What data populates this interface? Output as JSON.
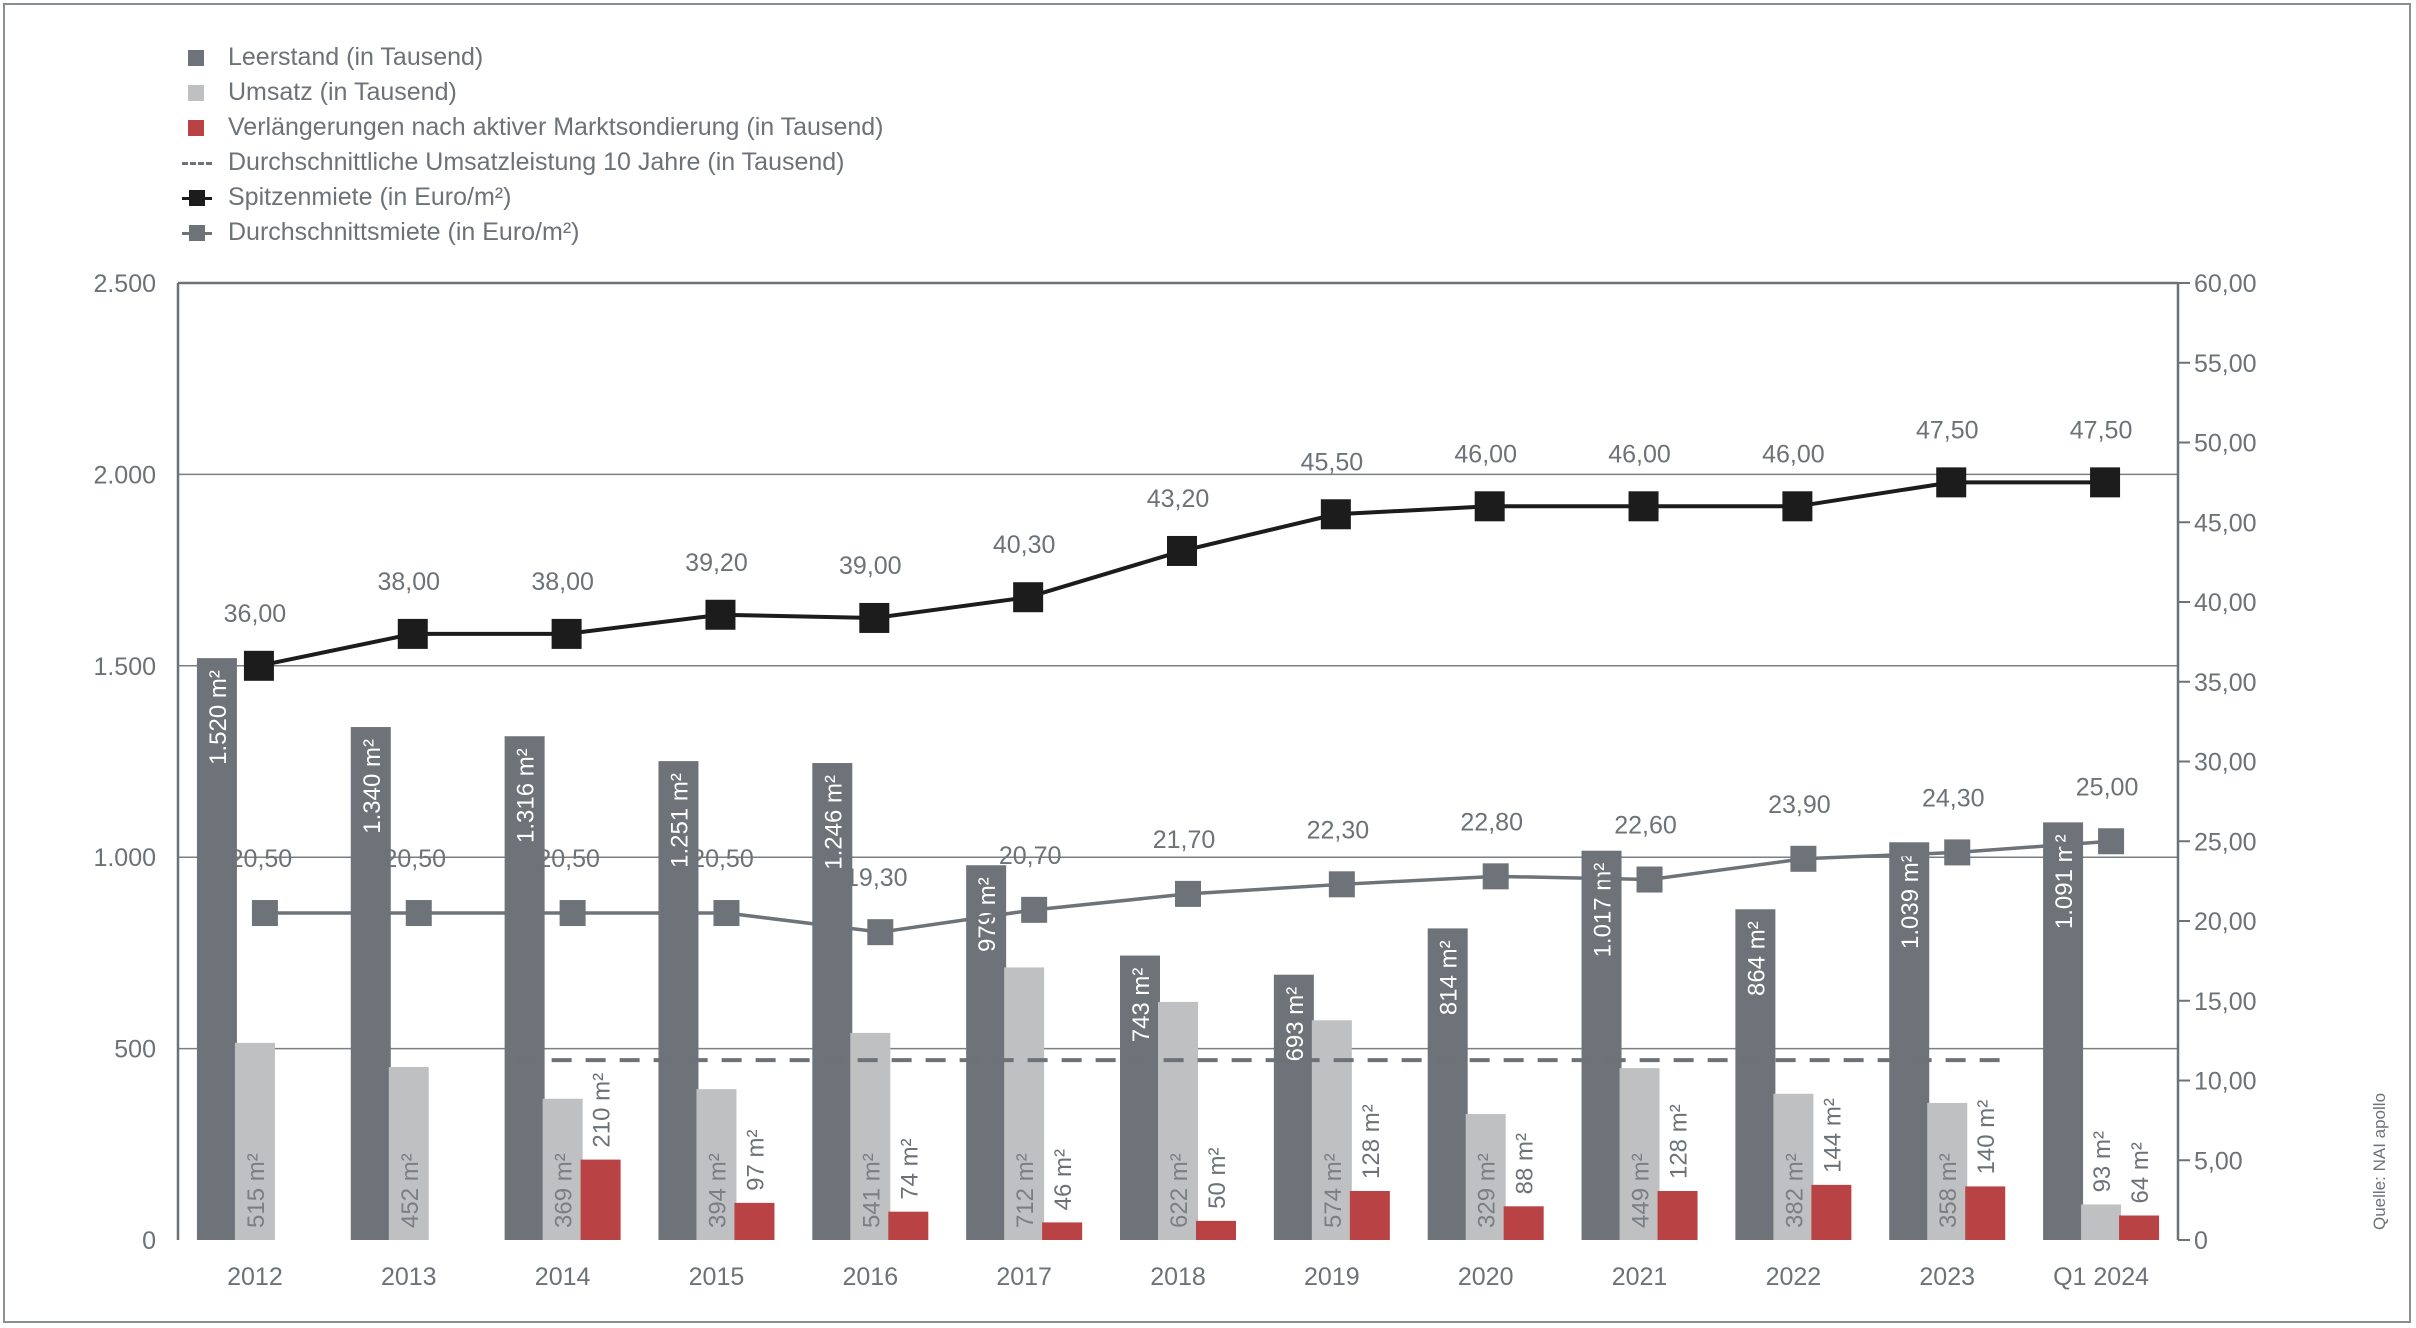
{
  "legend": [
    {
      "label": "Leerstand (in Tausend)",
      "kind": "box",
      "color": "#6d7378"
    },
    {
      "label": "Umsatz (in Tausend)",
      "kind": "box",
      "color": "#bfc0c2"
    },
    {
      "label": "Verlängerungen nach aktiver Marktsondierung (in Tausend)",
      "kind": "box",
      "color": "#b84244"
    },
    {
      "label": "Durchschnittliche Umsatzleistung 10 Jahre (in Tausend)",
      "kind": "dash",
      "color": "#6c7277"
    },
    {
      "label": "Spitzenmiete (in Euro/m²)",
      "kind": "line",
      "color": "#1c1c1c"
    },
    {
      "label": "Durchschnittsmiete (in Euro/m²)",
      "kind": "line",
      "color": "#6d7378"
    }
  ],
  "source": "Quelle: NAI apollo",
  "chart_data": {
    "type": "bar",
    "categories": [
      "2012",
      "2013",
      "2014",
      "2015",
      "2016",
      "2017",
      "2018",
      "2019",
      "2020",
      "2021",
      "2022",
      "2023",
      "Q1 2024"
    ],
    "left_axis": {
      "ylim": [
        0,
        2500
      ],
      "ticks": [
        0,
        500,
        1000,
        1500,
        2000,
        2500
      ],
      "tick_labels": [
        "0",
        "500",
        "1.000",
        "1.500",
        "2.000",
        "2.500"
      ]
    },
    "right_axis": {
      "ylim": [
        0,
        60
      ],
      "ticks": [
        0,
        5,
        10,
        15,
        20,
        25,
        30,
        35,
        40,
        45,
        50,
        55,
        60
      ],
      "tick_labels": [
        "0",
        "5,00",
        "10,00",
        "15,00",
        "20,00",
        "25,00",
        "30,00",
        "35,00",
        "40,00",
        "45,00",
        "50,00",
        "55,00",
        "60,00"
      ]
    },
    "series": [
      {
        "name": "Leerstand (in Tausend)",
        "kind": "bar",
        "axis": "left",
        "color": "#6d7378",
        "values": [
          1520,
          1340,
          1316,
          1251,
          1246,
          979,
          743,
          693,
          814,
          1017,
          864,
          1039,
          1091
        ],
        "labels": [
          "1.520 m²",
          "1.340 m²",
          "1.316 m²",
          "1.251 m²",
          "1.246 m²",
          "979 m²",
          "743 m²",
          "693 m²",
          "814 m²",
          "1.017 m²",
          "864 m²",
          "1.039 m²",
          "1.091 m²"
        ]
      },
      {
        "name": "Umsatz (in Tausend)",
        "kind": "bar",
        "axis": "left",
        "color": "#bfc0c2",
        "values": [
          515,
          452,
          369,
          394,
          541,
          712,
          622,
          574,
          329,
          449,
          382,
          358,
          93
        ],
        "labels": [
          "515 m²",
          "452 m²",
          "369 m²",
          "394 m²",
          "541 m²",
          "712 m²",
          "622 m²",
          "574 m²",
          "329 m²",
          "449 m²",
          "382 m²",
          "358 m²",
          "93 m²"
        ]
      },
      {
        "name": "Verlängerungen nach aktiver Marktsondierung (in Tausend)",
        "kind": "bar",
        "axis": "left",
        "color": "#b84244",
        "values": [
          null,
          null,
          210,
          97,
          74,
          46,
          50,
          128,
          88,
          128,
          144,
          140,
          64
        ],
        "labels": [
          "",
          "",
          "210 m²",
          "97 m²",
          "74 m²",
          "46 m²",
          "50 m²",
          "128 m²",
          "88 m²",
          "128 m²",
          "144 m²",
          "140 m²",
          "64 m²"
        ]
      },
      {
        "name": "Durchschnittliche Umsatzleistung 10 Jahre (in Tausend)",
        "kind": "dash",
        "axis": "left",
        "color": "#6c7277",
        "value": 470,
        "from": "2014",
        "to": "2023"
      },
      {
        "name": "Spitzenmiete (in Euro/m²)",
        "kind": "line",
        "axis": "right",
        "color": "#1c1c1c",
        "values": [
          36.0,
          38.0,
          38.0,
          39.2,
          39.0,
          40.3,
          43.2,
          45.5,
          46.0,
          46.0,
          46.0,
          47.5,
          47.5
        ],
        "labels": [
          "36,00",
          "38,00",
          "38,00",
          "39,20",
          "39,00",
          "40,30",
          "43,20",
          "45,50",
          "46,00",
          "46,00",
          "46,00",
          "47,50",
          "47,50"
        ]
      },
      {
        "name": "Durchschnittsmiete (in Euro/m²)",
        "kind": "line",
        "axis": "right",
        "color": "#6d7378",
        "values": [
          20.5,
          20.5,
          20.5,
          20.5,
          19.3,
          20.7,
          21.7,
          22.3,
          22.8,
          22.6,
          23.9,
          24.3,
          25.0
        ],
        "labels": [
          "20,50",
          "20,50",
          "20,50",
          "20,50",
          "19,30",
          "20,70",
          "21,70",
          "22,30",
          "22,80",
          "22,60",
          "23,90",
          "24,30",
          "25,00"
        ]
      }
    ]
  }
}
